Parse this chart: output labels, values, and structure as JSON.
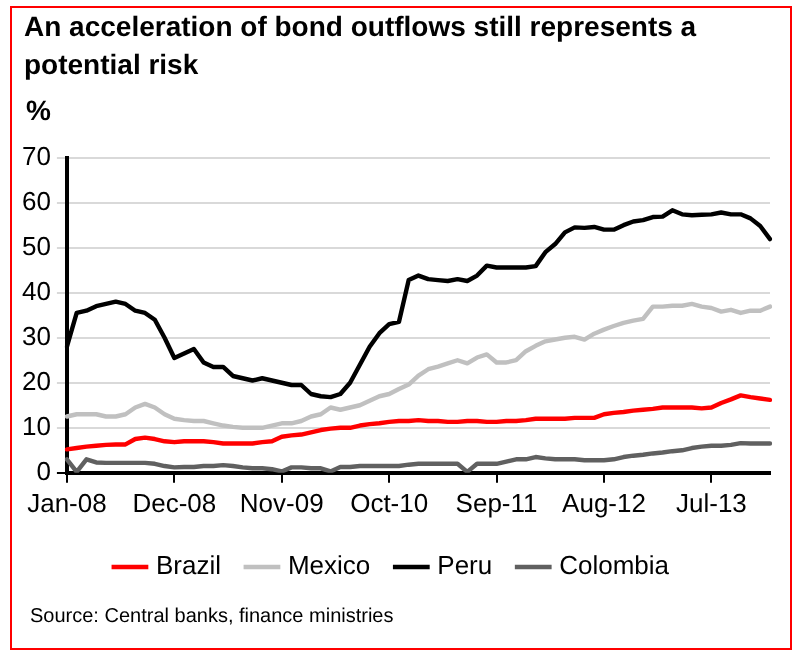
{
  "chart_data": {
    "type": "line",
    "title": "An acceleration of bond outflows still represents a potential risk",
    "ylabel": "%",
    "categories": [
      "Jan-08",
      null,
      null,
      null,
      null,
      null,
      null,
      null,
      null,
      null,
      null,
      "Dec-08",
      null,
      null,
      null,
      null,
      null,
      null,
      null,
      null,
      null,
      null,
      "Nov-09",
      null,
      null,
      null,
      null,
      null,
      null,
      null,
      null,
      null,
      null,
      "Oct-10",
      null,
      null,
      null,
      null,
      null,
      null,
      null,
      null,
      null,
      null,
      "Sep-11",
      null,
      null,
      null,
      null,
      null,
      null,
      null,
      null,
      null,
      null,
      "Aug-12",
      null,
      null,
      null,
      null,
      null,
      null,
      null,
      null,
      null,
      null,
      "Jul-13",
      null,
      null,
      null,
      null,
      null,
      null
    ],
    "series": [
      {
        "name": "Brazil",
        "color": "#ff0000",
        "values": [
          5.2,
          5.5,
          5.8,
          6,
          6.2,
          6.3,
          6.3,
          7.5,
          7.8,
          7.5,
          7,
          6.8,
          7,
          7,
          7,
          6.8,
          6.5,
          6.5,
          6.5,
          6.5,
          6.8,
          7,
          8,
          8.3,
          8.5,
          9,
          9.5,
          9.8,
          10,
          10,
          10.5,
          10.8,
          11,
          11.3,
          11.5,
          11.5,
          11.7,
          11.5,
          11.5,
          11.3,
          11.3,
          11.5,
          11.5,
          11.3,
          11.3,
          11.5,
          11.5,
          11.7,
          12,
          12,
          12,
          12,
          12.2,
          12.2,
          12.2,
          13,
          13.3,
          13.5,
          13.8,
          14,
          14.2,
          14.5,
          14.5,
          14.5,
          14.5,
          14.3,
          14.5,
          15.5,
          16.3,
          17.2,
          16.8,
          16.5,
          16.2
        ]
      },
      {
        "name": "Mexico",
        "color": "#c0c0c0",
        "values": [
          12.5,
          13,
          13,
          13,
          12.5,
          12.5,
          13,
          14.5,
          15.3,
          14.5,
          13,
          12,
          11.7,
          11.5,
          11.5,
          11,
          10.5,
          10.2,
          10,
          10,
          10,
          10.5,
          11,
          11,
          11.5,
          12.5,
          13,
          14.5,
          14,
          14.5,
          15,
          16,
          17,
          17.5,
          18.6,
          19.6,
          21.6,
          23,
          23.6,
          24.3,
          25,
          24.3,
          25.6,
          26.3,
          24.5,
          24.5,
          25,
          27,
          28.2,
          29.2,
          29.6,
          30,
          30.2,
          29.6,
          30.9,
          31.8,
          32.6,
          33.3,
          33.8,
          34.2,
          36.9,
          36.9,
          37.1,
          37.1,
          37.5,
          36.9,
          36.6,
          35.8,
          36.2,
          35.5,
          36,
          36,
          36.9
        ]
      },
      {
        "name": "Peru",
        "color": "#000000",
        "values": [
          28,
          35.5,
          36,
          37,
          37.5,
          38,
          37.5,
          36,
          35.5,
          34,
          30,
          25.5,
          26.5,
          27.5,
          24.5,
          23.5,
          23.5,
          21.5,
          21,
          20.5,
          21,
          20.5,
          20,
          19.5,
          19.5,
          17.5,
          17,
          16.8,
          17.5,
          20,
          24,
          28,
          31,
          33,
          33.5,
          42.8,
          43.8,
          43,
          42.8,
          42.6,
          43,
          42.6,
          43.8,
          46,
          45.6,
          45.6,
          45.6,
          45.6,
          45.9,
          49,
          50.8,
          53.4,
          54.5,
          54.4,
          54.6,
          54,
          54,
          55,
          55.8,
          56.1,
          56.8,
          56.9,
          58.3,
          57.4,
          57.2,
          57.3,
          57.4,
          57.8,
          57.4,
          57.4,
          56.5,
          54.8,
          51.9
        ]
      },
      {
        "name": "Colombia",
        "color": "#606060",
        "values": [
          3,
          0.2,
          3,
          2.3,
          2.2,
          2.2,
          2.2,
          2.2,
          2.2,
          2,
          1.5,
          1.2,
          1.3,
          1.3,
          1.5,
          1.5,
          1.7,
          1.5,
          1.2,
          1,
          1,
          0.8,
          0.3,
          1.2,
          1.2,
          1,
          1,
          0.3,
          1.3,
          1.3,
          1.5,
          1.5,
          1.5,
          1.5,
          1.5,
          1.8,
          2,
          2,
          2,
          2,
          2,
          0.2,
          2,
          2,
          2,
          2.5,
          3,
          3,
          3.5,
          3.2,
          3,
          3,
          3,
          2.8,
          2.8,
          2.8,
          3,
          3.5,
          3.8,
          4,
          4.3,
          4.5,
          4.8,
          5,
          5.5,
          5.8,
          6,
          6,
          6.2,
          6.6,
          6.5,
          6.5,
          6.5
        ]
      }
    ],
    "ylim": [
      0,
      70
    ],
    "yticks": [
      0,
      10,
      20,
      30,
      40,
      50,
      60,
      70
    ],
    "grid": "y",
    "legend": "bottom",
    "marker": "none",
    "line_style": "solid",
    "annotations": [
      "Source: Central banks, finance ministries"
    ]
  }
}
